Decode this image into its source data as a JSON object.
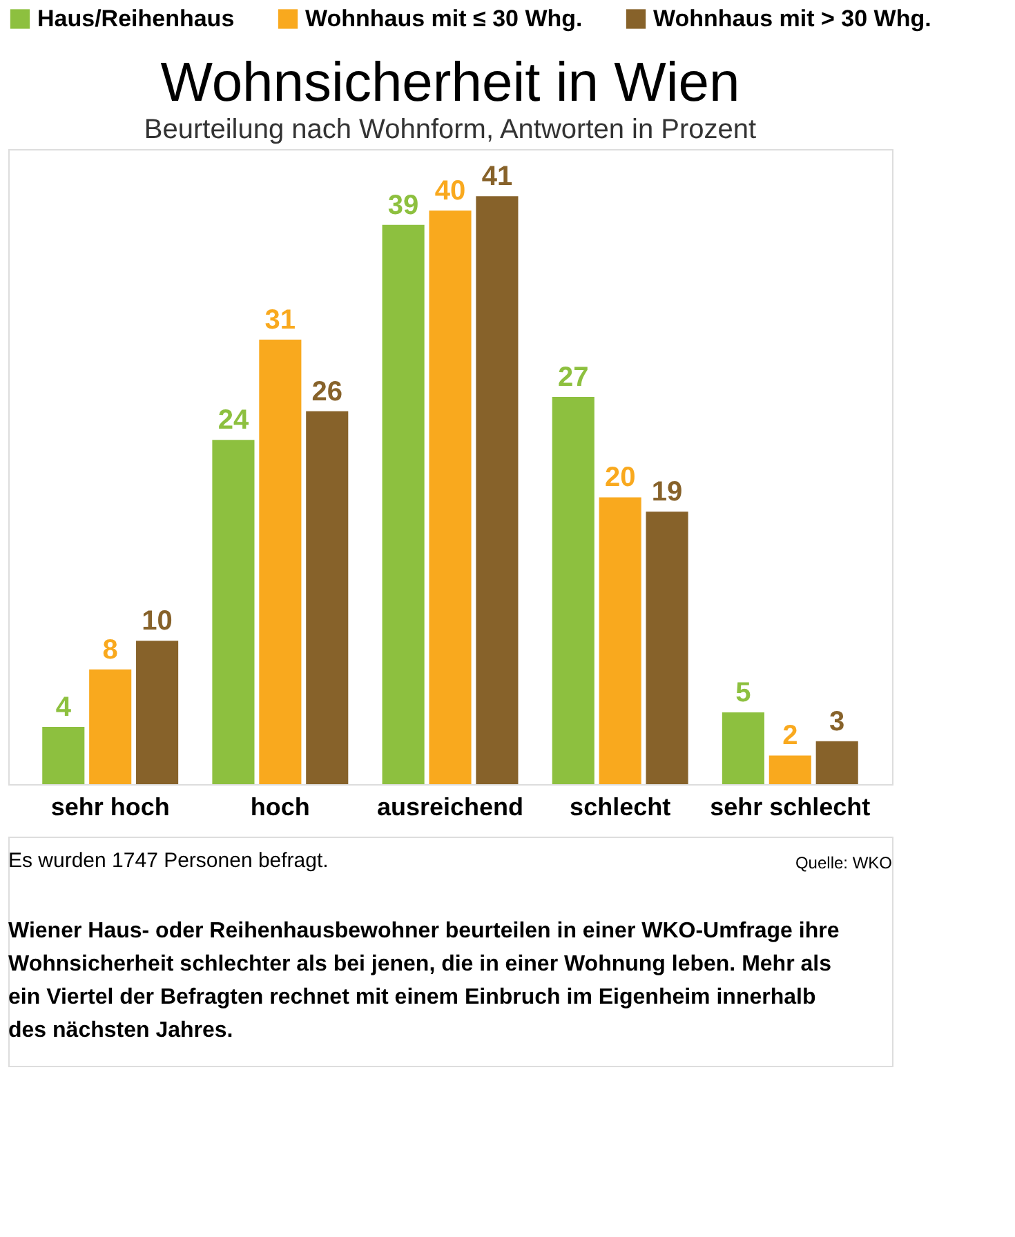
{
  "chart_data": {
    "type": "bar",
    "title": "Wohnsicherheit in Wien",
    "subtitle": "Beurteilung nach Wohnform, Antworten in Prozent",
    "categories": [
      "sehr hoch",
      "hoch",
      "ausreichend",
      "schlecht",
      "sehr schlecht"
    ],
    "series": [
      {
        "name": "Haus/Reihenhaus",
        "color": "#8dc03f",
        "values": [
          4,
          24,
          39,
          27,
          5
        ]
      },
      {
        "name": "Wohnhaus mit ≤ 30 Whg.",
        "color": "#f9a91e",
        "values": [
          8,
          31,
          40,
          20,
          2
        ]
      },
      {
        "name": "Wohnhaus mit > 30 Whg.",
        "color": "#87622a",
        "values": [
          10,
          26,
          41,
          19,
          3
        ]
      }
    ],
    "data_labels": true,
    "legend": "top",
    "grid": false,
    "annotations": [
      "Es wurden 1747 Personen befragt.",
      "Quelle: WKO",
      "Wiener Haus- oder Reihenhausbewohner beurteilen in einer WKO-Umfrage ihre Wohnsicherheit schlechter als bei jenen, die in einer Wohnung leben. Mehr als ein Viertel der Befragten rechnet mit einem Einbruch im Eigenheim innerhalb des nächsten Jahres."
    ]
  }
}
